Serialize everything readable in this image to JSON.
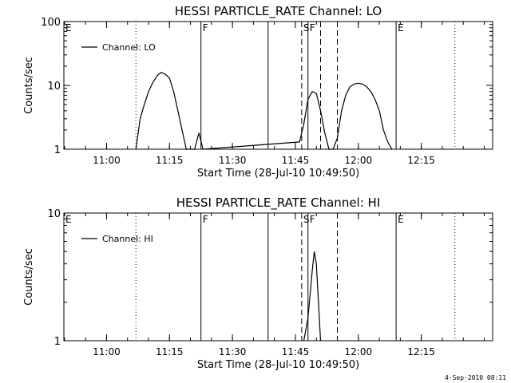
{
  "footer": {
    "timestamp": "4-Sep-2010 08:11"
  },
  "chart_data": [
    {
      "type": "line",
      "title": "HESSI PARTICLE_RATE Channel: LO",
      "xlabel": "Start Time (28-Jul-10 10:49:50)",
      "ylabel": "Counts/sec",
      "y_scale": "log",
      "xlim": [
        "10:49:50",
        "12:32:00"
      ],
      "ylim": [
        1,
        100
      ],
      "x_ticks": [
        "11:00",
        "11:15",
        "11:30",
        "11:45",
        "12:00",
        "12:15"
      ],
      "y_ticks": [
        "1",
        "10",
        "100"
      ],
      "legend": {
        "placement": "top-left",
        "entries": [
          "Channel: LO"
        ]
      },
      "series": [
        {
          "name": "Channel: LO",
          "x": [
            "11:07:00",
            "11:08:00",
            "11:09:00",
            "11:10:00",
            "11:11:00",
            "11:12:00",
            "11:13:00",
            "11:14:00",
            "11:15:00",
            "11:16:00",
            "11:17:00",
            "11:18:00",
            "11:19:00",
            "11:20:00",
            "11:21:00",
            "11:22:00",
            "11:23:00",
            "11:46:00",
            "11:47:00",
            "11:48:00",
            "11:49:00",
            "11:50:00",
            "11:51:00",
            "11:52:00",
            "11:53:00",
            "11:54:00",
            "11:55:00",
            "11:56:00",
            "11:57:00",
            "11:58:00",
            "11:59:00",
            "12:00:00",
            "12:01:00",
            "12:02:00",
            "12:03:00",
            "12:04:00",
            "12:05:00",
            "12:06:00",
            "12:07:00",
            "12:08:00"
          ],
          "values": [
            1,
            3,
            5,
            8,
            11,
            14,
            16,
            15,
            13,
            8,
            4,
            2,
            1,
            1,
            1,
            1.8,
            1,
            1.3,
            2.5,
            6,
            8,
            7.5,
            4,
            1.8,
            1,
            1,
            1.5,
            4,
            7,
            9.5,
            10.5,
            10.8,
            10.5,
            9.5,
            8,
            6,
            4,
            2,
            1.3,
            1
          ]
        }
      ],
      "events": {
        "dotted": [
          "11:07:00",
          "12:23:00"
        ],
        "solid": [
          "11:22:30",
          "11:38:30",
          "11:48:00",
          "12:09:00"
        ],
        "dashed": [
          "11:46:30",
          "11:51:00",
          "11:55:00"
        ],
        "markers": [
          {
            "time": "10:49:50",
            "label": "E"
          },
          {
            "time": "11:22:30",
            "label": "F"
          },
          {
            "time": "11:46:30",
            "label": "S"
          },
          {
            "time": "11:48:00",
            "label": "F"
          },
          {
            "time": "12:09:00",
            "label": "E"
          }
        ]
      }
    },
    {
      "type": "line",
      "title": "HESSI PARTICLE_RATE Channel: HI",
      "xlabel": "Start Time (28-Jul-10 10:49:50)",
      "ylabel": "Counts/sec",
      "y_scale": "log",
      "xlim": [
        "10:49:50",
        "12:32:00"
      ],
      "ylim": [
        1,
        10
      ],
      "x_ticks": [
        "11:00",
        "11:15",
        "11:30",
        "11:45",
        "12:00",
        "12:15"
      ],
      "y_ticks": [
        "1",
        "10"
      ],
      "legend": {
        "placement": "top-left",
        "entries": [
          "Channel: HI"
        ]
      },
      "series": [
        {
          "name": "Channel: HI",
          "x": [
            "11:47:00",
            "11:48:00",
            "11:49:00",
            "11:49:30",
            "11:50:00",
            "11:51:00"
          ],
          "values": [
            1,
            1.5,
            3.5,
            5.0,
            4.0,
            1
          ]
        }
      ],
      "events": {
        "dotted": [
          "11:07:00",
          "12:23:00"
        ],
        "solid": [
          "11:22:30",
          "11:38:30",
          "11:48:00",
          "12:09:00"
        ],
        "dashed": [
          "11:46:30",
          "11:55:00"
        ],
        "markers": [
          {
            "time": "10:49:50",
            "label": "E"
          },
          {
            "time": "11:22:30",
            "label": "F"
          },
          {
            "time": "11:46:30",
            "label": "S"
          },
          {
            "time": "11:48:00",
            "label": "F"
          },
          {
            "time": "12:09:00",
            "label": "E"
          }
        ]
      }
    }
  ]
}
